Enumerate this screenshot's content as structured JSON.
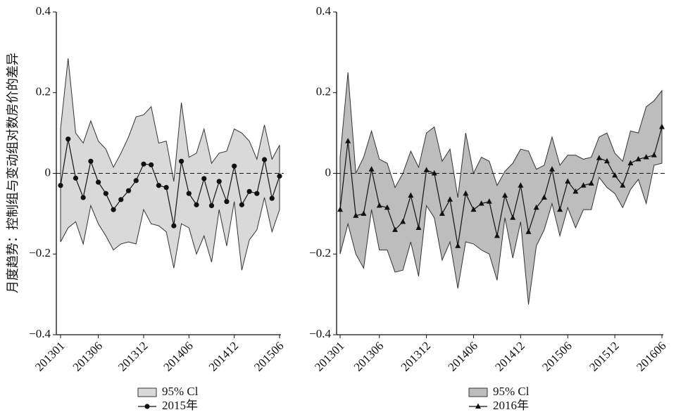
{
  "chart_data": [
    {
      "type": "line",
      "y_label": "月度趋势：控制组与变动组对数房价的差异",
      "categories": [
        "201301",
        null,
        null,
        null,
        null,
        "201306",
        null,
        null,
        null,
        null,
        null,
        "201312",
        null,
        null,
        null,
        null,
        null,
        "201406",
        null,
        null,
        null,
        null,
        null,
        "201412",
        null,
        null,
        null,
        null,
        null,
        "201506"
      ],
      "series": [
        {
          "name": "95% Cl",
          "color": "#d9d9d9",
          "upper": [
            0.11,
            0.285,
            0.1,
            0.075,
            0.13,
            0.08,
            0.06,
            0.015,
            0.05,
            0.09,
            0.14,
            0.145,
            0.165,
            0.075,
            0.08,
            -0.02,
            0.175,
            0.04,
            0.05,
            0.11,
            0.025,
            0.05,
            0.055,
            0.11,
            0.1,
            0.08,
            0.035,
            0.12,
            0.035,
            0.07
          ],
          "lower": [
            -0.17,
            -0.135,
            -0.12,
            -0.175,
            -0.08,
            -0.125,
            -0.155,
            -0.19,
            -0.175,
            -0.17,
            -0.175,
            -0.09,
            -0.125,
            -0.13,
            -0.145,
            -0.235,
            -0.125,
            -0.135,
            -0.2,
            -0.155,
            -0.22,
            -0.09,
            -0.18,
            -0.07,
            -0.24,
            -0.165,
            -0.14,
            -0.06,
            -0.145,
            -0.09
          ]
        },
        {
          "name": "2015年",
          "color": "#111111",
          "marker": "circle",
          "values": [
            -0.03,
            0.085,
            -0.012,
            -0.06,
            0.03,
            -0.022,
            -0.05,
            -0.09,
            -0.065,
            -0.043,
            -0.018,
            0.023,
            0.021,
            -0.03,
            -0.035,
            -0.13,
            0.03,
            -0.05,
            -0.078,
            -0.013,
            -0.08,
            -0.02,
            -0.07,
            0.018,
            -0.078,
            -0.045,
            -0.05,
            0.034,
            -0.062,
            -0.007
          ]
        }
      ],
      "ylim": [
        -0.4,
        0.4
      ],
      "yticks": [
        {
          "value": -0.4,
          "label": "−0.4"
        },
        {
          "value": -0.2,
          "label": "−0.2"
        },
        0,
        0.2,
        0.4
      ],
      "zero_line": true
    },
    {
      "type": "line",
      "categories": [
        "201301",
        null,
        null,
        null,
        null,
        "201306",
        null,
        null,
        null,
        null,
        null,
        "201312",
        null,
        null,
        null,
        null,
        null,
        "201406",
        null,
        null,
        null,
        null,
        null,
        "201412",
        null,
        null,
        null,
        null,
        null,
        "201506",
        null,
        null,
        null,
        null,
        null,
        "201512",
        null,
        null,
        null,
        null,
        null,
        "201606"
      ],
      "series": [
        {
          "name": "95% Cl",
          "color": "#bdbdbd",
          "upper": [
            0.04,
            0.25,
            0.0,
            0.04,
            0.105,
            0.035,
            0.025,
            -0.035,
            0.0,
            0.055,
            0.015,
            0.1,
            0.115,
            0.03,
            0.06,
            -0.06,
            0.1,
            0.0,
            0.04,
            0.03,
            -0.03,
            0.005,
            0.025,
            0.06,
            0.055,
            0.01,
            0.02,
            0.09,
            0.02,
            0.045,
            0.045,
            0.035,
            0.04,
            0.09,
            0.1,
            0.05,
            0.03,
            0.105,
            0.1,
            0.165,
            0.18,
            0.205
          ],
          "lower": [
            -0.2,
            -0.125,
            -0.2,
            -0.235,
            -0.09,
            -0.19,
            -0.19,
            -0.245,
            -0.24,
            -0.17,
            -0.255,
            -0.08,
            -0.11,
            -0.215,
            -0.17,
            -0.285,
            -0.17,
            -0.175,
            -0.19,
            -0.2,
            -0.265,
            -0.11,
            -0.21,
            -0.12,
            -0.325,
            -0.18,
            -0.14,
            -0.075,
            -0.155,
            -0.085,
            -0.135,
            -0.09,
            -0.09,
            -0.01,
            -0.035,
            -0.05,
            -0.085,
            -0.04,
            -0.015,
            -0.075,
            0.02,
            0.025
          ]
        },
        {
          "name": "2016年",
          "color": "#111111",
          "marker": "triangle",
          "values": [
            -0.09,
            0.08,
            -0.105,
            -0.1,
            0.01,
            -0.08,
            -0.085,
            -0.14,
            -0.12,
            -0.055,
            -0.135,
            0.008,
            0.0,
            -0.1,
            -0.065,
            -0.18,
            -0.05,
            -0.09,
            -0.075,
            -0.07,
            -0.155,
            -0.055,
            -0.11,
            -0.03,
            -0.145,
            -0.085,
            -0.06,
            0.01,
            -0.09,
            -0.02,
            -0.045,
            -0.03,
            -0.025,
            0.038,
            0.03,
            -0.005,
            -0.03,
            0.025,
            0.035,
            0.04,
            0.045,
            0.115
          ]
        }
      ],
      "ylim": [
        -0.4,
        0.4
      ],
      "yticks": [
        {
          "value": -0.4,
          "label": "−0.4"
        },
        {
          "value": -0.2,
          "label": "−0.2"
        },
        0,
        0.2,
        0.4
      ],
      "zero_line": true
    }
  ]
}
